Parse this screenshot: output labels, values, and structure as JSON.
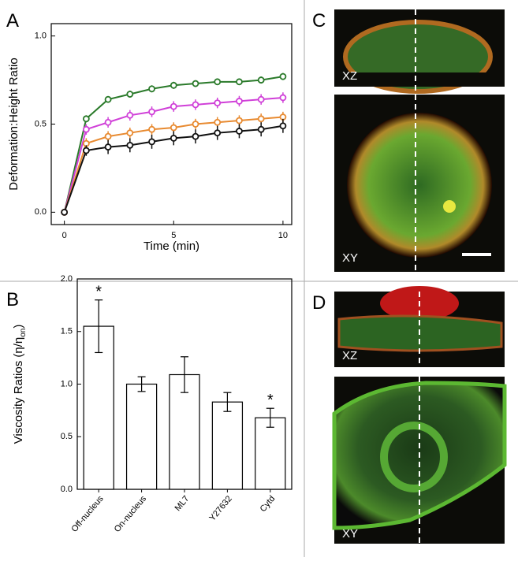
{
  "figure": {
    "panel_labels": [
      "A",
      "B",
      "C",
      "D"
    ],
    "image_labels": {
      "C": [
        "XZ",
        "XY"
      ],
      "D": [
        "XZ",
        "XY"
      ]
    }
  },
  "chart_data": [
    {
      "type": "line",
      "xlabel": "Time (min)",
      "ylabel": "Deformation:Height Ratio",
      "x": [
        0,
        1,
        2,
        3,
        4,
        5,
        6,
        7,
        8,
        9,
        10
      ],
      "xlim": [
        -0.6,
        10.4
      ],
      "xticks": [
        0,
        5,
        10
      ],
      "ylim": [
        -0.07,
        1.07
      ],
      "yticks": [
        {
          "value": 0,
          "label": "0.0"
        },
        0.5,
        {
          "value": 1,
          "label": "1.0"
        }
      ],
      "series": [
        {
          "color": "#2a7a2a",
          "values": [
            0,
            0.53,
            0.64,
            0.67,
            0.7,
            0.72,
            0.73,
            0.74,
            0.74,
            0.75,
            0.77
          ],
          "errors": [
            0,
            0.02,
            0.01,
            0.02,
            0.02,
            0.02,
            0.015,
            0.015,
            0.015,
            0.02,
            0.02
          ]
        },
        {
          "color": "#d040d8",
          "values": [
            0,
            0.47,
            0.51,
            0.55,
            0.57,
            0.6,
            0.61,
            0.62,
            0.63,
            0.64,
            0.65
          ],
          "errors": [
            0,
            0.03,
            0.03,
            0.03,
            0.03,
            0.03,
            0.03,
            0.03,
            0.03,
            0.03,
            0.03
          ]
        },
        {
          "color": "#e88a30",
          "values": [
            0,
            0.39,
            0.43,
            0.45,
            0.47,
            0.48,
            0.5,
            0.51,
            0.52,
            0.53,
            0.54
          ],
          "errors": [
            0,
            0.03,
            0.03,
            0.03,
            0.03,
            0.03,
            0.03,
            0.03,
            0.03,
            0.03,
            0.03
          ]
        },
        {
          "color": "#111111",
          "values": [
            0,
            0.35,
            0.37,
            0.38,
            0.4,
            0.42,
            0.43,
            0.45,
            0.46,
            0.47,
            0.49
          ],
          "errors": [
            0,
            0.03,
            0.04,
            0.04,
            0.04,
            0.04,
            0.04,
            0.04,
            0.04,
            0.04,
            0.04
          ]
        }
      ]
    },
    {
      "type": "bar",
      "ylabel": [
        "Viscosity Ratios (η/η",
        "on",
        ")"
      ],
      "categories": [
        "Off-nucleus",
        "On-nucleus",
        "ML7",
        "Y27632",
        "Cytd"
      ],
      "values": [
        1.55,
        1.0,
        1.09,
        0.83,
        0.68
      ],
      "errors": [
        0.25,
        0.07,
        0.17,
        0.09,
        0.09
      ],
      "annotations": [
        "*",
        null,
        null,
        null,
        "*"
      ],
      "color": "#ffffff",
      "ylim": [
        0,
        2.0
      ],
      "yticks": [
        {
          "value": 0,
          "label": "0.0"
        },
        0.5,
        {
          "value": 1,
          "label": "1.0"
        },
        1.5,
        {
          "value": 2,
          "label": "2.0"
        }
      ]
    }
  ]
}
